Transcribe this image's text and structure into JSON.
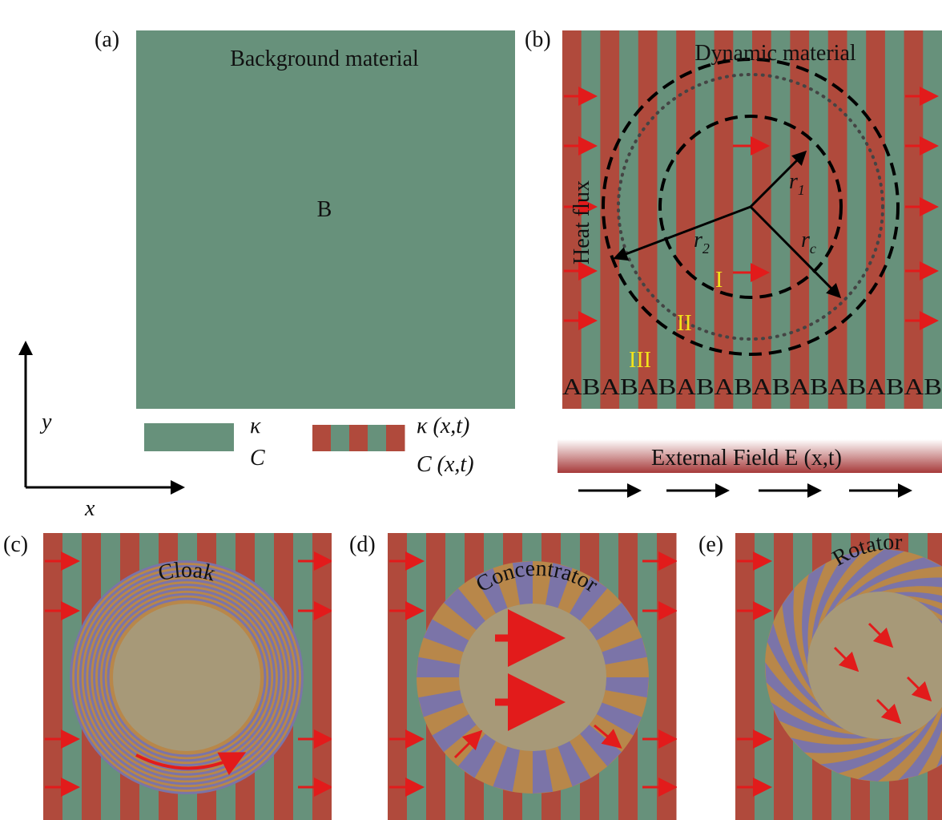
{
  "panels": {
    "a": {
      "label": "(a)",
      "background_label": "Background material",
      "center_label": "B",
      "legend": {
        "kappa": "κ",
        "capacity": "C",
        "kappa_dynamic": "κ (x,t)",
        "capacity_dynamic": "C (x,t)"
      },
      "axes": {
        "y": "y",
        "x": "x"
      }
    },
    "b": {
      "label": "(b)",
      "title": "Dynamic material",
      "heat_flux": "Heat flux",
      "r1": {
        "symbol": "r",
        "subscript": "1"
      },
      "r2": {
        "symbol": "r",
        "subscript": "2"
      },
      "rc": {
        "symbol": "r",
        "subscript": "c"
      },
      "regions": [
        "I",
        "II",
        "III"
      ],
      "sequence": "ABABABABABABABABABAB",
      "external_field": "External Field E (x,t)"
    },
    "c": {
      "label": "(c)",
      "device": "Cloak"
    },
    "d": {
      "label": "(d)",
      "device": "Concentrator"
    },
    "e": {
      "label": "(e)",
      "device": "Rotator"
    }
  }
}
